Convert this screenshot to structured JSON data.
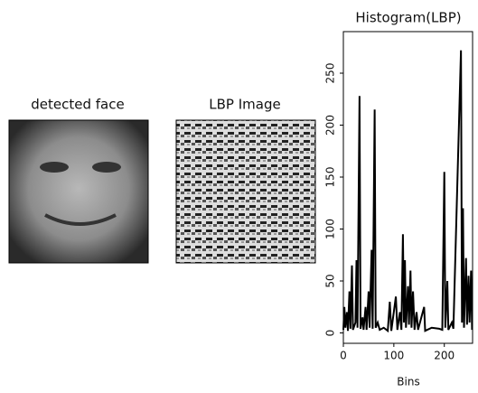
{
  "images": [
    {
      "title": "detected face"
    },
    {
      "title": "LBP Image"
    }
  ],
  "chart_data": {
    "type": "line",
    "title": "Histogram(LBP)",
    "xlabel": "Bins",
    "x": [
      0,
      2,
      4,
      7,
      9,
      12,
      14,
      17,
      19,
      24,
      26,
      28,
      32,
      34,
      38,
      40,
      44,
      46,
      50,
      52,
      56,
      58,
      62,
      64,
      68,
      72,
      80,
      88,
      92,
      95,
      104,
      107,
      112,
      115,
      118,
      120,
      122,
      124,
      128,
      130,
      133,
      135,
      138,
      141,
      145,
      148,
      160,
      162,
      175,
      190,
      196,
      200,
      202,
      206,
      208,
      215,
      218,
      233,
      235,
      237,
      239,
      243,
      245,
      248,
      250,
      253,
      255
    ],
    "series": [
      {
        "color": "#000000",
        "values": [
          3,
          25,
          5,
          20,
          2,
          40,
          4,
          65,
          3,
          10,
          70,
          5,
          228,
          4,
          15,
          3,
          25,
          3,
          40,
          5,
          80,
          4,
          215,
          5,
          10,
          3,
          5,
          2,
          30,
          2,
          35,
          3,
          20,
          3,
          95,
          10,
          70,
          5,
          45,
          8,
          60,
          5,
          40,
          3,
          20,
          3,
          25,
          2,
          5,
          4,
          3,
          155,
          5,
          50,
          3,
          10,
          4,
          272,
          10,
          120,
          5,
          72,
          8,
          55,
          10,
          60,
          3
        ]
      }
    ],
    "xlim": [
      0,
      256
    ],
    "ylim": [
      -10,
      290
    ],
    "xticks": [
      0,
      100,
      200
    ],
    "yticks": [
      0,
      50,
      100,
      150,
      200,
      250
    ]
  }
}
